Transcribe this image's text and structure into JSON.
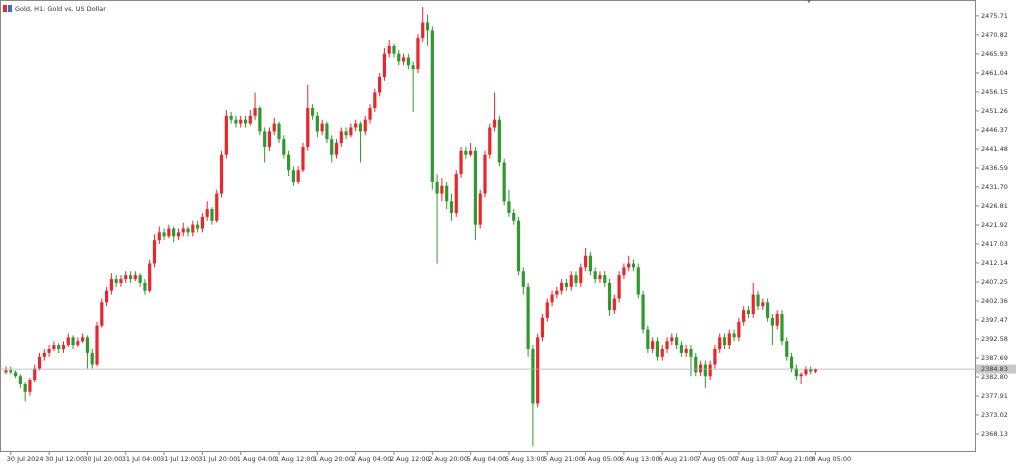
{
  "chart_data": {
    "type": "candlestick",
    "title": "Gold, H1: Gold vs. US Dollar",
    "up_color": "#e8262b",
    "down_color": "#2e9a2e",
    "categories": [
      null,
      "30 Jul 2024",
      null,
      null,
      null,
      null,
      null,
      null,
      null,
      "30 Jul 12:00",
      null,
      null,
      null,
      null,
      null,
      null,
      null,
      "30 Jul 20:00",
      null,
      null,
      null,
      null,
      null,
      null,
      null,
      "31 Jul 04:00",
      null,
      null,
      null,
      null,
      null,
      null,
      null,
      "31 Jul 12:00",
      null,
      null,
      null,
      null,
      null,
      null,
      null,
      "31 Jul 20:00",
      null,
      null,
      null,
      null,
      null,
      null,
      null,
      "1 Aug 04:00",
      null,
      null,
      null,
      null,
      null,
      null,
      null,
      "1 Aug 12:00",
      null,
      null,
      null,
      null,
      null,
      null,
      null,
      "1 Aug 20:00",
      null,
      null,
      null,
      null,
      null,
      null,
      null,
      "2 Aug 04:00",
      null,
      null,
      null,
      null,
      null,
      null,
      null,
      "2 Aug 12:00",
      null,
      null,
      null,
      null,
      null,
      null,
      null,
      "2 Aug 20:00",
      null,
      null,
      null,
      null,
      null,
      null,
      null,
      "5 Aug 04:00",
      null,
      null,
      null,
      null,
      null,
      null,
      null,
      "5 Aug 13:00",
      null,
      null,
      null,
      null,
      null,
      null,
      null,
      "5 Aug 21:00",
      null,
      null,
      null,
      null,
      null,
      null,
      null,
      "6 Aug 05:00",
      null,
      null,
      null,
      null,
      null,
      null,
      null,
      "6 Aug 13:00",
      null,
      null,
      null,
      null,
      null,
      null,
      null,
      "6 Aug 21:00",
      null,
      null,
      null,
      null,
      null,
      null,
      null,
      "7 Aug 05:00",
      null,
      null,
      null,
      null,
      null,
      null,
      null,
      "7 Aug 13:00",
      null,
      null,
      null,
      null,
      null,
      null,
      null,
      "7 Aug 21:00",
      null,
      null,
      null,
      null,
      null,
      null,
      null,
      "8 Aug 05:00"
    ],
    "ohlc": [
      [
        2384,
        2385.5,
        2383.5,
        2384.5
      ],
      [
        2384.5,
        2385.5,
        2383.5,
        2384
      ],
      [
        2384,
        2384.5,
        2382.5,
        2383
      ],
      [
        2383,
        2383.5,
        2380,
        2381
      ],
      [
        2381,
        2381.5,
        2376.5,
        2379
      ],
      [
        2379,
        2382.5,
        2378,
        2382
      ],
      [
        2382,
        2386,
        2381.5,
        2385
      ],
      [
        2385,
        2389,
        2384.5,
        2388
      ],
      [
        2388,
        2390,
        2387,
        2389
      ],
      [
        2389,
        2391,
        2388,
        2390
      ],
      [
        2390,
        2392,
        2389.5,
        2391
      ],
      [
        2391,
        2391.5,
        2389,
        2390
      ],
      [
        2390,
        2392,
        2389,
        2391
      ],
      [
        2391,
        2394,
        2390.5,
        2393
      ],
      [
        2393,
        2393.5,
        2390,
        2391
      ],
      [
        2391,
        2393,
        2390.5,
        2392
      ],
      [
        2392,
        2394,
        2391.5,
        2393
      ],
      [
        2393,
        2393.5,
        2385,
        2389
      ],
      [
        2389,
        2390,
        2385,
        2386
      ],
      [
        2386,
        2397,
        2385.5,
        2396
      ],
      [
        2396,
        2403,
        2395.5,
        2402
      ],
      [
        2402,
        2406,
        2401,
        2405
      ],
      [
        2405,
        2409.5,
        2404,
        2408
      ],
      [
        2408,
        2409,
        2406,
        2407
      ],
      [
        2407,
        2409,
        2406,
        2408
      ],
      [
        2408,
        2410,
        2407,
        2409
      ],
      [
        2409,
        2410,
        2407,
        2408
      ],
      [
        2408,
        2410,
        2407.5,
        2409
      ],
      [
        2409,
        2409.5,
        2406,
        2407
      ],
      [
        2407,
        2408,
        2404,
        2405
      ],
      [
        2405,
        2413,
        2404.5,
        2412
      ],
      [
        2412,
        2419.5,
        2411,
        2418
      ],
      [
        2418,
        2421.5,
        2417,
        2420
      ],
      [
        2420,
        2421,
        2418,
        2419
      ],
      [
        2419,
        2422,
        2418.5,
        2421
      ],
      [
        2421,
        2421.5,
        2417.5,
        2419
      ],
      [
        2419,
        2421,
        2418,
        2420
      ],
      [
        2420,
        2422.5,
        2419,
        2421
      ],
      [
        2421,
        2421.5,
        2419,
        2420
      ],
      [
        2420,
        2423,
        2419,
        2422
      ],
      [
        2422,
        2423,
        2420,
        2421
      ],
      [
        2421,
        2425,
        2420,
        2424
      ],
      [
        2424,
        2428,
        2423,
        2426
      ],
      [
        2426,
        2426.5,
        2422,
        2423
      ],
      [
        2423,
        2431,
        2422.5,
        2430
      ],
      [
        2430,
        2441,
        2429,
        2440
      ],
      [
        2440,
        2451.5,
        2439,
        2450
      ],
      [
        2450,
        2451,
        2448,
        2449
      ],
      [
        2449,
        2450,
        2447,
        2448
      ],
      [
        2448,
        2450,
        2447,
        2449
      ],
      [
        2449,
        2450,
        2447,
        2448
      ],
      [
        2448,
        2451.5,
        2447.5,
        2450
      ],
      [
        2450,
        2456,
        2449,
        2452
      ],
      [
        2452,
        2452.5,
        2445,
        2446
      ],
      [
        2446,
        2447,
        2438,
        2442
      ],
      [
        2442,
        2447,
        2441,
        2446
      ],
      [
        2446,
        2449.5,
        2445,
        2448
      ],
      [
        2448,
        2448.5,
        2443,
        2444
      ],
      [
        2444,
        2445,
        2439,
        2440
      ],
      [
        2440,
        2441,
        2434.5,
        2436
      ],
      [
        2436,
        2437,
        2432,
        2433
      ],
      [
        2433,
        2437,
        2432.5,
        2436
      ],
      [
        2436,
        2443,
        2435.5,
        2442
      ],
      [
        2442,
        2458,
        2441,
        2452
      ],
      [
        2452,
        2453,
        2449,
        2450
      ],
      [
        2450,
        2451,
        2444.5,
        2446
      ],
      [
        2446,
        2449,
        2445,
        2448
      ],
      [
        2448,
        2448.5,
        2443,
        2444
      ],
      [
        2444,
        2445,
        2438,
        2440
      ],
      [
        2440,
        2444,
        2439,
        2443
      ],
      [
        2443,
        2447,
        2442,
        2446
      ],
      [
        2446,
        2447,
        2444,
        2445
      ],
      [
        2445,
        2448,
        2444.5,
        2447
      ],
      [
        2447,
        2449,
        2446,
        2448
      ],
      [
        2448,
        2448.5,
        2438,
        2446
      ],
      [
        2446,
        2450,
        2445,
        2449
      ],
      [
        2449,
        2453,
        2448,
        2452
      ],
      [
        2452,
        2457,
        2451,
        2456
      ],
      [
        2456,
        2461,
        2455,
        2460
      ],
      [
        2460,
        2467.5,
        2459,
        2466
      ],
      [
        2466,
        2469.5,
        2465,
        2468
      ],
      [
        2468,
        2468.5,
        2465,
        2466
      ],
      [
        2466,
        2467,
        2463,
        2464
      ],
      [
        2464,
        2466,
        2463,
        2465
      ],
      [
        2465,
        2466,
        2462,
        2463
      ],
      [
        2463,
        2464,
        2451,
        2462
      ],
      [
        2462,
        2471,
        2461,
        2470
      ],
      [
        2470,
        2478,
        2469,
        2474
      ],
      [
        2474,
        2476,
        2468,
        2472
      ],
      [
        2472,
        2473,
        2431,
        2433
      ],
      [
        2433,
        2435,
        2412,
        2430
      ],
      [
        2430,
        2434,
        2428,
        2432
      ],
      [
        2432,
        2433,
        2426,
        2428
      ],
      [
        2428,
        2430,
        2423,
        2425
      ],
      [
        2425,
        2436,
        2424,
        2435
      ],
      [
        2435,
        2442,
        2434,
        2441
      ],
      [
        2441,
        2442,
        2439,
        2440
      ],
      [
        2440,
        2443,
        2439.5,
        2441
      ],
      [
        2441,
        2442,
        2418,
        2422
      ],
      [
        2422,
        2431,
        2421,
        2430
      ],
      [
        2430,
        2441,
        2429,
        2440
      ],
      [
        2440,
        2448,
        2439,
        2447
      ],
      [
        2447,
        2456,
        2446,
        2449
      ],
      [
        2449,
        2450,
        2437,
        2438
      ],
      [
        2438,
        2439,
        2427,
        2428
      ],
      [
        2428,
        2431,
        2424,
        2425
      ],
      [
        2425,
        2426,
        2422,
        2423
      ],
      [
        2423,
        2424,
        2409,
        2410
      ],
      [
        2410,
        2411,
        2404,
        2406
      ],
      [
        2406,
        2407,
        2388,
        2390
      ],
      [
        2390,
        2391,
        2365,
        2376
      ],
      [
        2376,
        2394,
        2375,
        2393
      ],
      [
        2393,
        2399,
        2392,
        2398
      ],
      [
        2398,
        2403,
        2397,
        2402
      ],
      [
        2402,
        2405,
        2401,
        2404
      ],
      [
        2404,
        2406,
        2403,
        2405
      ],
      [
        2405,
        2408,
        2404,
        2407
      ],
      [
        2407,
        2408,
        2405,
        2406
      ],
      [
        2406,
        2410,
        2405,
        2409
      ],
      [
        2409,
        2410,
        2406,
        2407
      ],
      [
        2407,
        2412,
        2406,
        2411
      ],
      [
        2411,
        2416,
        2410,
        2414
      ],
      [
        2414,
        2415,
        2409,
        2410
      ],
      [
        2410,
        2411,
        2407,
        2408
      ],
      [
        2408,
        2410,
        2407,
        2409
      ],
      [
        2409,
        2410,
        2406,
        2407
      ],
      [
        2407,
        2408,
        2398.5,
        2400
      ],
      [
        2400,
        2404,
        2399,
        2403
      ],
      [
        2403,
        2410,
        2402,
        2409
      ],
      [
        2409,
        2412,
        2408,
        2411
      ],
      [
        2411,
        2414,
        2410,
        2412
      ],
      [
        2412,
        2413,
        2410,
        2411
      ],
      [
        2411,
        2412,
        2403,
        2404
      ],
      [
        2404,
        2405,
        2394,
        2395
      ],
      [
        2395,
        2396,
        2389,
        2390
      ],
      [
        2390,
        2393,
        2389,
        2392
      ],
      [
        2392,
        2393,
        2387,
        2388
      ],
      [
        2388,
        2391,
        2387,
        2390
      ],
      [
        2390,
        2393,
        2389,
        2392
      ],
      [
        2392,
        2394,
        2391,
        2393
      ],
      [
        2393,
        2394,
        2390,
        2391
      ],
      [
        2391,
        2392,
        2388,
        2389
      ],
      [
        2389,
        2391,
        2388,
        2390
      ],
      [
        2390,
        2391,
        2383,
        2388
      ],
      [
        2388,
        2389,
        2383,
        2384
      ],
      [
        2384,
        2387,
        2383,
        2386
      ],
      [
        2386,
        2387,
        2380,
        2383
      ],
      [
        2383,
        2387,
        2382,
        2386
      ],
      [
        2386,
        2391,
        2385,
        2390
      ],
      [
        2390,
        2394,
        2389,
        2393
      ],
      [
        2393,
        2394,
        2390,
        2391
      ],
      [
        2391,
        2395,
        2390,
        2394
      ],
      [
        2394,
        2395,
        2392,
        2393
      ],
      [
        2393,
        2398,
        2392,
        2397
      ],
      [
        2397,
        2401,
        2396,
        2400
      ],
      [
        2400,
        2401,
        2398,
        2399
      ],
      [
        2399,
        2407,
        2398,
        2404
      ],
      [
        2404,
        2405,
        2400,
        2401
      ],
      [
        2401,
        2403,
        2400,
        2402
      ],
      [
        2402,
        2403,
        2397,
        2398
      ],
      [
        2398,
        2399,
        2391,
        2396
      ],
      [
        2396,
        2400,
        2395,
        2399
      ],
      [
        2399,
        2400,
        2391,
        2392
      ],
      [
        2392,
        2393,
        2387,
        2388
      ],
      [
        2388,
        2389,
        2384,
        2385
      ],
      [
        2385,
        2386,
        2382,
        2383
      ],
      [
        2383,
        2384,
        2381,
        2383.5
      ],
      [
        2383.5,
        2385.5,
        2383,
        2384.8
      ],
      [
        2384.8,
        2385.5,
        2383.5,
        2384.2
      ],
      [
        2384.2,
        2385,
        2383.8,
        2384.83
      ]
    ],
    "current_price": 2384.83,
    "ylim": [
      2363.5,
      2479.8
    ],
    "yticks": [
      2368.13,
      2373.02,
      2377.91,
      {
        "value": 2382.8,
        "label": "2382.80"
      },
      2387.69,
      2392.58,
      2397.47,
      2402.36,
      2407.25,
      2412.14,
      2417.03,
      2421.92,
      2426.81,
      {
        "value": 2431.7,
        "label": "2431.70"
      },
      2436.59,
      2441.48,
      2446.37,
      2451.26,
      2456.15,
      2461.04,
      2465.93,
      2470.82,
      2475.71
    ],
    "grid": false
  }
}
